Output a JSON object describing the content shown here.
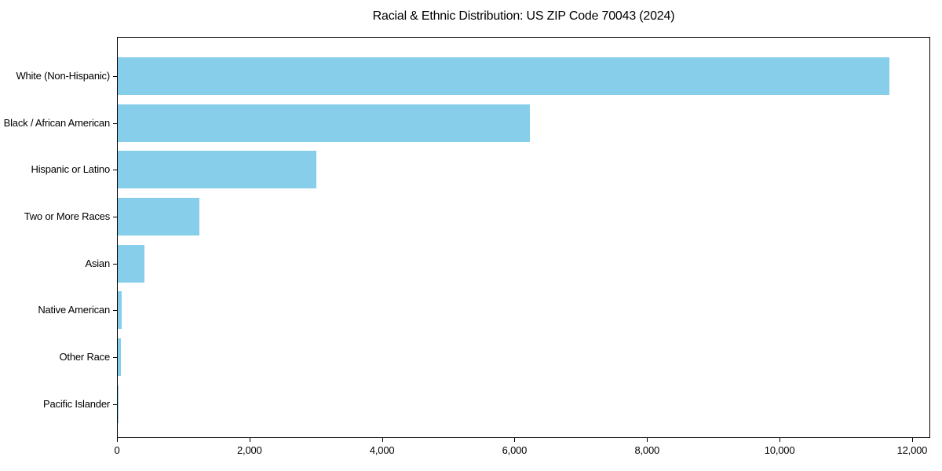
{
  "chart_data": {
    "type": "bar",
    "orientation": "horizontal",
    "title": "Racial & Ethnic Distribution: US ZIP Code 70043 (2024)",
    "categories": [
      "White (Non-Hispanic)",
      "Black / African American",
      "Hispanic or Latino",
      "Two or More Races",
      "Asian",
      "Native American",
      "Other Race",
      "Pacific Islander"
    ],
    "values": [
      11650,
      6225,
      2995,
      1235,
      400,
      60,
      45,
      12
    ],
    "xlabel": "",
    "ylabel": "",
    "xlim": [
      0,
      12250
    ],
    "x_ticks": [
      0,
      2000,
      4000,
      6000,
      8000,
      10000,
      12000
    ],
    "x_tick_labels": [
      "0",
      "2,000",
      "4,000",
      "6,000",
      "8,000",
      "10,000",
      "12,000"
    ],
    "bar_color": "#87CEEB",
    "axis_color": "#000000",
    "text_color": "#000000",
    "background_color": "#FFFFFF",
    "grid": false,
    "legend": null
  }
}
